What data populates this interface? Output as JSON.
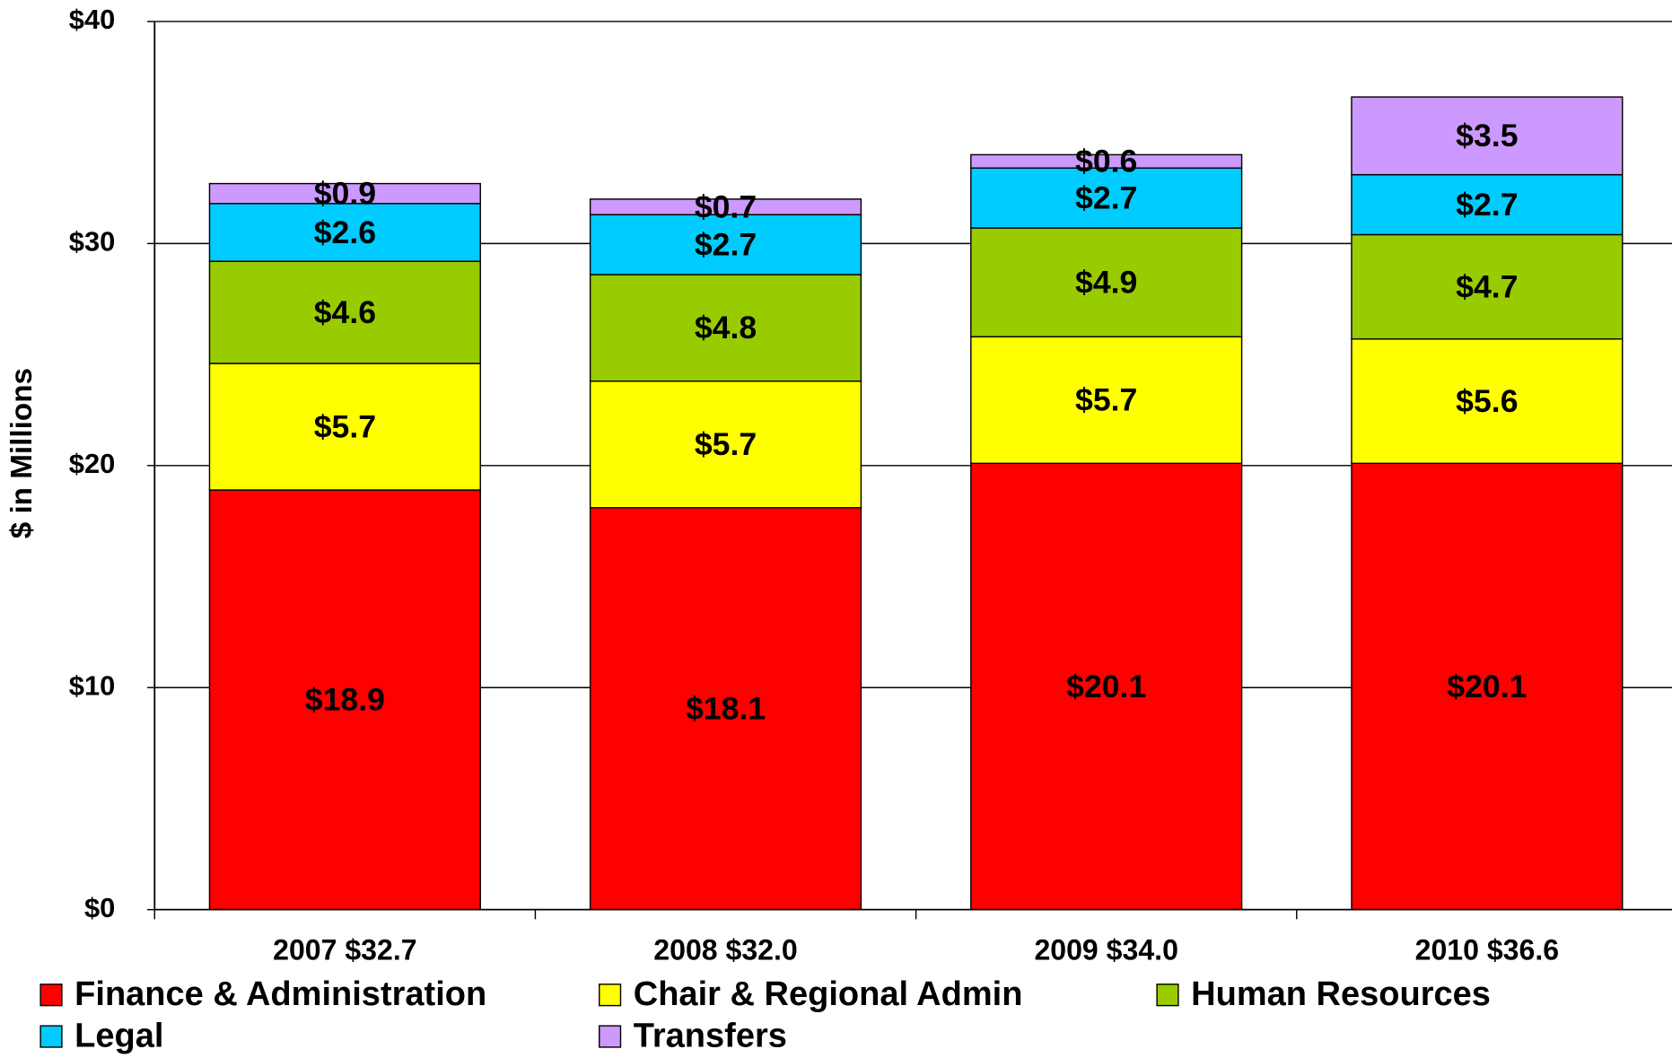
{
  "chart_data": {
    "type": "stacked-bar",
    "y_label": "$ in Millions",
    "categories": [
      "2007  $32.7",
      "2008  $32.0",
      "2009  $34.0",
      "2010  $36.6"
    ],
    "series": [
      {
        "name": "Finance & Administration",
        "color": "#ff0000",
        "values": [
          18.9,
          18.1,
          20.1,
          20.1
        ],
        "value_labels": [
          "$18.9",
          "$18.1",
          "$20.1",
          "$20.1"
        ]
      },
      {
        "name": "Chair & Regional Admin",
        "color": "#ffff00",
        "values": [
          5.7,
          5.7,
          5.7,
          5.6
        ],
        "value_labels": [
          "$5.7",
          "$5.7",
          "$5.7",
          "$5.6"
        ]
      },
      {
        "name": "Human Resources",
        "color": "#99cc00",
        "values": [
          4.6,
          4.8,
          4.9,
          4.7
        ],
        "value_labels": [
          "$4.6",
          "$4.8",
          "$4.9",
          "$4.7"
        ]
      },
      {
        "name": "Legal",
        "color": "#00ccff",
        "values": [
          2.6,
          2.7,
          2.7,
          2.7
        ],
        "value_labels": [
          "$2.6",
          "$2.7",
          "$2.7",
          "$2.7"
        ]
      },
      {
        "name": "Transfers",
        "color": "#cc99ff",
        "values": [
          0.9,
          0.7,
          0.6,
          3.5
        ],
        "value_labels": [
          "$0.9",
          "$0.7",
          "$0.6",
          "$3.5"
        ]
      }
    ],
    "ylim": [
      0,
      40
    ],
    "yticks": [
      {
        "value": 0,
        "label": "$0"
      },
      {
        "value": 10,
        "label": "$10"
      },
      {
        "value": 20,
        "label": "$20"
      },
      {
        "value": 30,
        "label": "$30"
      },
      {
        "value": 40,
        "label": "$40"
      }
    ],
    "grid": true,
    "legend": "bottom"
  }
}
